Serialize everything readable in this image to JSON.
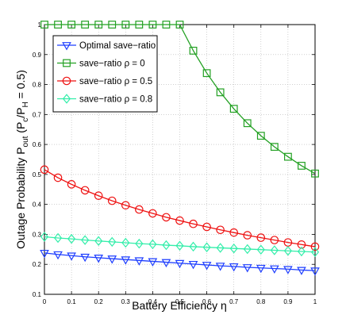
{
  "chart_data": {
    "type": "line",
    "xlabel": "Battery Efficiency η",
    "ylabel": "Outage Probability P",
    "ylabel_sub": "out",
    "ylabel_rest": " (P",
    "ylabel_sub2": "c",
    "ylabel_mid": "/P",
    "ylabel_sub3": "H",
    "ylabel_end": " = 0.5)",
    "xlim": [
      0,
      1
    ],
    "ylim": [
      0.1,
      1
    ],
    "xticks": [
      "0",
      "0.1",
      "0.2",
      "0.3",
      "0.4",
      "0.5",
      "0.6",
      "0.7",
      "0.8",
      "0.9",
      "1"
    ],
    "yticks": [
      "0.1",
      "0.2",
      "0.3",
      "0.4",
      "0.5",
      "0.6",
      "0.7",
      "0.8",
      "0.9",
      "1"
    ],
    "grid": true,
    "legend_position": "top-left",
    "x": [
      0,
      0.05,
      0.1,
      0.15,
      0.2,
      0.25,
      0.3,
      0.35,
      0.4,
      0.45,
      0.5,
      0.55,
      0.6,
      0.65,
      0.7,
      0.75,
      0.8,
      0.85,
      0.9,
      0.95,
      1
    ],
    "series": [
      {
        "name": "Optimal save−ratio",
        "color": "#1f3fff",
        "marker": "triangle-down",
        "values": [
          0.238,
          0.233,
          0.229,
          0.225,
          0.222,
          0.219,
          0.216,
          0.213,
          0.21,
          0.207,
          0.204,
          0.201,
          0.198,
          0.195,
          0.193,
          0.19,
          0.188,
          0.186,
          0.184,
          0.181,
          0.179
        ]
      },
      {
        "name": "save−ratio ρ = 0",
        "color": "#22a022",
        "marker": "square",
        "values": [
          1.0,
          1.0,
          1.0,
          1.0,
          1.0,
          1.0,
          1.0,
          1.0,
          1.0,
          1.0,
          1.0,
          0.913,
          0.838,
          0.774,
          0.719,
          0.671,
          0.629,
          0.592,
          0.559,
          0.529,
          0.503
        ]
      },
      {
        "name": "save−ratio ρ = 0.5",
        "color": "#ee1111",
        "marker": "circle",
        "values": [
          0.516,
          0.489,
          0.467,
          0.447,
          0.429,
          0.412,
          0.397,
          0.383,
          0.37,
          0.357,
          0.346,
          0.335,
          0.325,
          0.315,
          0.306,
          0.297,
          0.289,
          0.281,
          0.273,
          0.266,
          0.259
        ]
      },
      {
        "name": "save−ratio ρ = 0.8",
        "color": "#33eeaa",
        "marker": "diamond",
        "values": [
          0.292,
          0.288,
          0.285,
          0.281,
          0.278,
          0.275,
          0.272,
          0.269,
          0.267,
          0.264,
          0.262,
          0.259,
          0.257,
          0.255,
          0.253,
          0.251,
          0.249,
          0.247,
          0.245,
          0.243,
          0.241
        ]
      }
    ]
  }
}
